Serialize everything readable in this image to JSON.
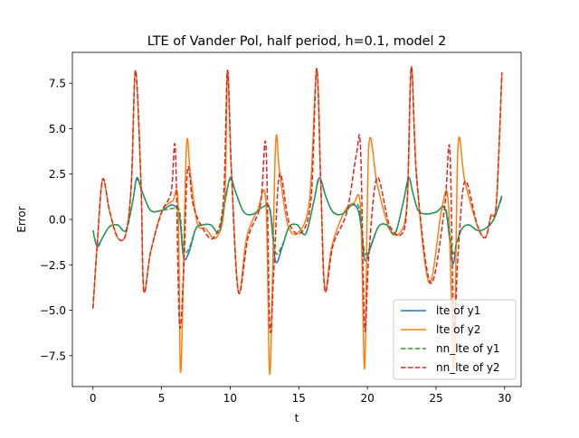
{
  "chart_data": {
    "type": "line",
    "title": "LTE of Vander Pol, half period, h=0.1, model 2",
    "xlabel": "t",
    "ylabel": "Error",
    "xlim": [
      -1.5,
      31.2
    ],
    "ylim": [
      -9.2,
      9.2
    ],
    "xticks": [
      0,
      5,
      10,
      15,
      20,
      25,
      30
    ],
    "xtick_labels": [
      "0",
      "5",
      "10",
      "15",
      "20",
      "25",
      "30"
    ],
    "yticks": [
      -7.5,
      -5.0,
      -2.5,
      0.0,
      2.5,
      5.0,
      7.5
    ],
    "ytick_labels": [
      "−7.5",
      "−5.0",
      "−2.5",
      "0.0",
      "2.5",
      "5.0",
      "7.5"
    ],
    "grid": false,
    "legend_position": "lower-right",
    "series": [
      {
        "name": "lte of y1",
        "color": "#1f77b4",
        "style": "solid",
        "x": [
          0,
          0.3,
          0.7,
          1.2,
          1.8,
          2.4,
          2.9,
          3.2,
          3.6,
          4.2,
          5.0,
          5.8,
          6.3,
          6.6,
          7.0,
          7.5,
          8.0,
          8.6,
          9.2,
          9.6,
          10.0,
          10.4,
          11.0,
          11.7,
          12.4,
          12.9,
          13.3,
          13.8,
          14.3,
          14.9,
          15.5,
          16.1,
          16.5,
          17.0,
          17.5,
          18.2,
          18.9,
          19.4,
          19.8,
          20.2,
          20.8,
          21.4,
          22.0,
          22.6,
          23.0,
          23.3,
          23.7,
          24.3,
          25.0,
          25.7,
          26.2,
          26.5,
          26.9,
          27.4,
          28.0,
          28.6,
          29.2,
          29.8
        ],
        "y": [
          -0.6,
          -1.5,
          -1.0,
          -0.4,
          -0.3,
          -0.6,
          1.0,
          2.3,
          1.5,
          0.5,
          0.5,
          0.8,
          0.2,
          -2.1,
          -1.8,
          -0.5,
          -0.3,
          -0.3,
          -0.7,
          0.9,
          2.3,
          1.5,
          0.4,
          0.3,
          0.7,
          0.5,
          -2.3,
          -1.5,
          -0.4,
          -0.3,
          -0.8,
          1.0,
          2.3,
          1.2,
          0.4,
          0.3,
          0.8,
          0.3,
          -2.2,
          -1.6,
          -0.4,
          -0.3,
          -0.8,
          0.9,
          2.3,
          1.5,
          0.5,
          0.3,
          0.4,
          0.5,
          -2.4,
          -1.3,
          -0.5,
          -0.3,
          -0.6,
          -0.5,
          0.0,
          1.3
        ]
      },
      {
        "name": "lte of y2",
        "color": "#ff7f0e",
        "style": "solid",
        "x": [
          0,
          0.3,
          0.7,
          1.2,
          1.8,
          2.4,
          2.8,
          3.1,
          3.5,
          3.7,
          4.2,
          5.0,
          5.8,
          6.2,
          6.4,
          6.8,
          7.1,
          7.6,
          8.2,
          9.0,
          9.6,
          9.8,
          10.1,
          10.6,
          11.2,
          12.0,
          12.6,
          12.9,
          13.3,
          13.6,
          14.2,
          15.0,
          15.8,
          16.3,
          16.6,
          16.9,
          17.4,
          18.3,
          19.0,
          19.5,
          19.8,
          20.1,
          20.7,
          21.5,
          22.3,
          22.9,
          23.2,
          23.6,
          24.5,
          25.4,
          25.9,
          26.3,
          26.6,
          27.1,
          28.0,
          28.6,
          29.0,
          29.4,
          29.8
        ],
        "y": [
          -4.9,
          -1.5,
          2.2,
          0.5,
          -1.0,
          -0.8,
          2.0,
          8.2,
          2.0,
          -3.9,
          -1.8,
          0.4,
          1.0,
          0.9,
          -8.4,
          3.8,
          2.5,
          -0.2,
          -0.5,
          -1.0,
          1.0,
          8.2,
          2.5,
          -4.0,
          -1.0,
          0.5,
          1.0,
          -8.5,
          4.0,
          2.6,
          -0.3,
          -0.7,
          1.2,
          8.3,
          2.0,
          -3.9,
          -1.5,
          0.4,
          0.9,
          0.6,
          -8.2,
          4.0,
          2.0,
          -0.3,
          -0.8,
          1.0,
          8.4,
          2.2,
          -3.5,
          0.5,
          0.9,
          -8.2,
          4.0,
          2.1,
          -0.3,
          -1.0,
          0.2,
          0.9,
          8.1
        ]
      },
      {
        "name": "nn_lte of y1",
        "color": "#2ca02c",
        "style": "dashed",
        "x": [
          0,
          0.3,
          0.7,
          1.2,
          1.8,
          2.4,
          2.9,
          3.2,
          3.6,
          4.2,
          5.0,
          5.8,
          6.3,
          6.6,
          7.0,
          7.5,
          8.0,
          8.6,
          9.2,
          9.6,
          10.0,
          10.4,
          11.0,
          11.7,
          12.4,
          12.9,
          13.3,
          13.8,
          14.3,
          14.9,
          15.5,
          16.1,
          16.5,
          17.0,
          17.5,
          18.2,
          18.9,
          19.4,
          19.8,
          20.2,
          20.8,
          21.4,
          22.0,
          22.6,
          23.0,
          23.3,
          23.7,
          24.3,
          25.0,
          25.7,
          26.2,
          26.5,
          26.9,
          27.4,
          28.0,
          28.6,
          29.2,
          29.8
        ],
        "y": [
          -0.6,
          -1.4,
          -1.0,
          -0.4,
          -0.3,
          -0.6,
          1.0,
          2.2,
          1.5,
          0.5,
          0.5,
          0.6,
          0.5,
          -1.7,
          -1.6,
          -0.5,
          -0.3,
          -0.3,
          -0.7,
          0.9,
          2.2,
          1.5,
          0.4,
          0.3,
          0.7,
          0.6,
          -1.8,
          -1.4,
          -0.4,
          -0.3,
          -0.8,
          1.0,
          2.2,
          1.2,
          0.4,
          0.3,
          0.8,
          0.6,
          -1.8,
          -1.5,
          -0.4,
          -0.3,
          -0.8,
          0.9,
          2.2,
          1.5,
          0.5,
          0.3,
          0.4,
          0.6,
          -1.8,
          -1.3,
          -0.5,
          -0.3,
          -0.6,
          -0.5,
          0.0,
          1.2
        ]
      },
      {
        "name": "nn_lte of y2",
        "color": "#d62728",
        "style": "dashed",
        "x": [
          0,
          0.3,
          0.7,
          1.2,
          1.8,
          2.4,
          2.8,
          3.1,
          3.5,
          3.7,
          4.2,
          5.0,
          5.7,
          6.0,
          6.3,
          6.6,
          6.9,
          7.3,
          8.0,
          8.8,
          9.5,
          9.8,
          10.1,
          10.6,
          11.3,
          12.2,
          12.6,
          12.9,
          13.2,
          13.6,
          14.3,
          15.2,
          15.9,
          16.3,
          16.6,
          16.9,
          17.5,
          18.5,
          19.2,
          19.5,
          19.8,
          20.1,
          20.7,
          21.6,
          22.5,
          22.9,
          23.2,
          23.6,
          24.6,
          25.6,
          26.0,
          26.3,
          26.6,
          27.1,
          28.0,
          28.6,
          29.0,
          29.4,
          29.8
        ],
        "y": [
          -4.9,
          -1.5,
          2.2,
          0.5,
          -1.0,
          -0.8,
          2.0,
          8.2,
          2.0,
          -3.9,
          -1.8,
          0.4,
          1.5,
          3.9,
          -5.7,
          -3.0,
          2.8,
          0.8,
          -0.5,
          -1.0,
          1.0,
          8.2,
          2.5,
          -4.0,
          -1.0,
          0.8,
          4.1,
          -6.0,
          -2.5,
          2.5,
          -0.2,
          -0.7,
          1.2,
          8.3,
          2.0,
          -3.9,
          -1.4,
          0.4,
          3.6,
          3.9,
          -6.0,
          -2.0,
          2.3,
          -0.3,
          -0.8,
          1.0,
          8.4,
          2.2,
          -3.5,
          0.5,
          3.9,
          -6.0,
          -2.0,
          2.1,
          -0.3,
          -1.0,
          0.2,
          0.9,
          8.1
        ]
      }
    ]
  }
}
